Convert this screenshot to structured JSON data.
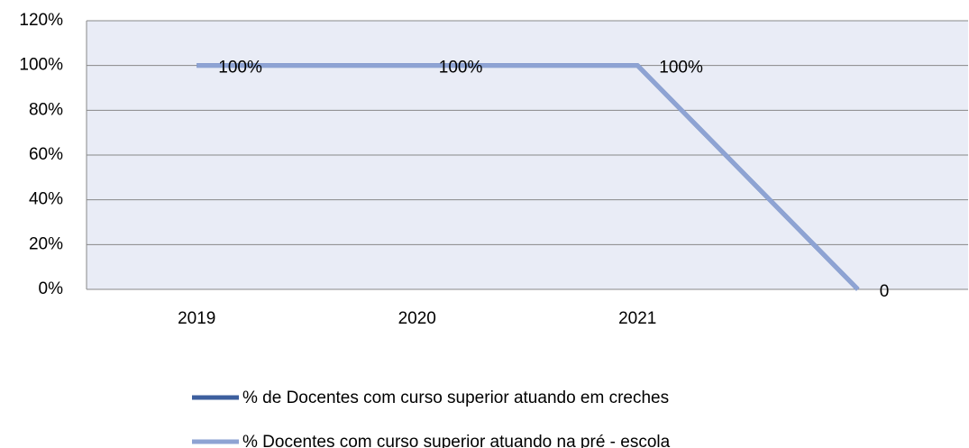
{
  "chart_data": {
    "type": "line",
    "categories": [
      "2019",
      "2020",
      "2021",
      null
    ],
    "series": [
      {
        "name": "% de Docentes com curso superior atuando em creches",
        "color": "#3d5f9e",
        "values": [
          100,
          100,
          100,
          0
        ]
      },
      {
        "name": "% Docentes com curso superior atuando na pré - escola",
        "color": "#8ea3d3",
        "values": [
          100,
          100,
          100,
          0
        ],
        "value_labels": [
          "100%",
          "100%",
          "100%",
          "0"
        ]
      }
    ],
    "ylim": [
      0,
      120
    ],
    "yticks": [
      {
        "value": 0,
        "label": "0%"
      },
      {
        "value": 20,
        "label": "20%"
      },
      {
        "value": 40,
        "label": "40%"
      },
      {
        "value": 60,
        "label": "60%"
      },
      {
        "value": 80,
        "label": "80%"
      },
      {
        "value": 100,
        "label": "100%"
      },
      {
        "value": 120,
        "label": "120%"
      }
    ],
    "grid": true,
    "legend": "bottom"
  }
}
